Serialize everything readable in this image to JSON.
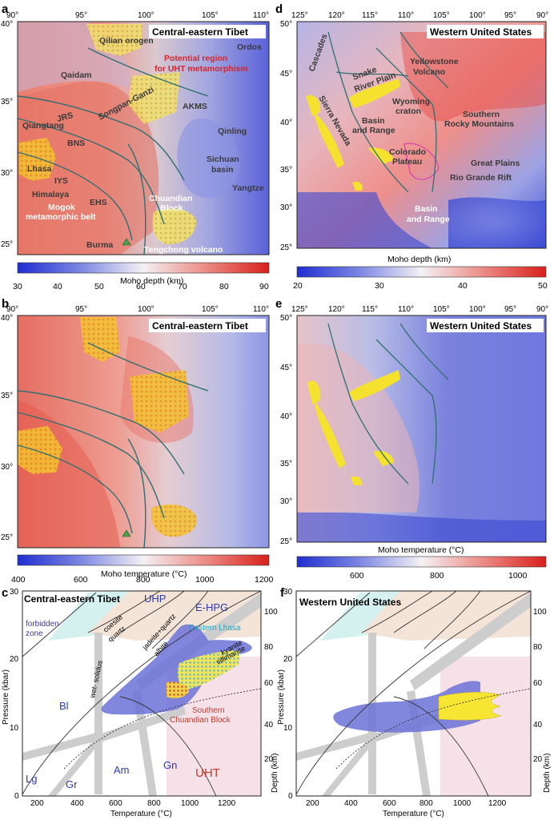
{
  "panels": {
    "a": {
      "letter": "a",
      "title": "Central-eastern Tibet",
      "x_ticks": [
        "90°",
        "95°",
        "100°",
        "105°",
        "110°"
      ],
      "y_ticks": [
        "40°",
        "35°",
        "30°",
        "25°"
      ],
      "labels": {
        "qilian": "Qilian orogen",
        "ordos": "Ordos",
        "potential1": "Potential region",
        "potential2": "for UHT metamorphism",
        "qaidam": "Qaidam",
        "akms": "AKMS",
        "songpan": "Songpan-Ganzi",
        "jrs": "JRS",
        "qiangtang": "Qiangtang",
        "qinling": "Qinling",
        "bns": "BNS",
        "sichuan1": "Sichuan",
        "sichuan2": "basin",
        "lhasa": "Lhasa",
        "iys": "IYS",
        "himalaya": "Himalaya",
        "ehs": "EHS",
        "yangtze": "Yangtze",
        "chuandian1": "Chuandian",
        "chuandian2": "Block",
        "mogok1": "Mogok",
        "mogok2": "metamorphic belt",
        "burma": "Burma",
        "tengchong": "Tengchong volcano"
      },
      "colorbar": {
        "label": "Moho depth (km)",
        "ticks": [
          "30",
          "40",
          "50",
          "60",
          "70",
          "80",
          "90"
        ]
      }
    },
    "b": {
      "letter": "b",
      "title": "Central-eastern Tibet",
      "x_ticks": [
        "90°",
        "95°",
        "100°",
        "105°",
        "110°"
      ],
      "y_ticks": [
        "40°",
        "35°",
        "30°",
        "25°"
      ],
      "colorbar": {
        "label": "Moho temperature (°C)",
        "ticks": [
          "400",
          "600",
          "800",
          "1000",
          "1200"
        ]
      }
    },
    "c": {
      "letter": "c",
      "title": "Central-eastern Tibet",
      "x_label": "Temperature (°C)",
      "y_label": "Pressure (kbar)",
      "depth_label": "Depth (km)",
      "x_ticks": [
        "200",
        "400",
        "600",
        "800",
        "1000",
        "1200"
      ],
      "y_ticks": [
        "0",
        "10",
        "20",
        "30"
      ],
      "depth_ticks": [
        "20",
        "40",
        "60",
        "80",
        "100"
      ],
      "labels": {
        "uhp": "UHP",
        "ehpg": "E-HPG",
        "forbidden1": "forbidden",
        "forbidden2": "zone",
        "coesite": "coesite",
        "quartz": "quartz",
        "jadeite": "jadeite+quartz",
        "albite": "albite",
        "eastern_lhasa": "Eastern Lhasa",
        "kyanite": "kyanite",
        "sillimanite": "sillimanite",
        "wet_solidus": "wet- solidus",
        "bl": "Bl",
        "southern1": "Southern",
        "southern2": "Chuandian Block",
        "lg": "Lg",
        "gr": "Gr",
        "am": "Am",
        "gn": "Gn",
        "uht": "UHT"
      }
    },
    "d": {
      "letter": "d",
      "title": "Western United States",
      "x_ticks": [
        "125°",
        "120°",
        "115°",
        "110°",
        "105°",
        "100°",
        "95°",
        "90°"
      ],
      "y_ticks": [
        "50°",
        "45°",
        "40°",
        "35°",
        "30°",
        "25°"
      ],
      "labels": {
        "cascades": "Cascades",
        "yellowstone1": "Yellowstone",
        "yellowstone2": "Volcano",
        "snake1": "Snake",
        "snake2": "River Plain",
        "wyoming1": "Wyoming",
        "wyoming2": "craton",
        "sierra": "Sierra Nevada",
        "basin_range1": "Basin",
        "basin_range2": "and Range",
        "southern_rocky1": "Southern",
        "southern_rocky2": "Rocky Mountains",
        "colorado1": "Colorado",
        "colorado2": "Plateau",
        "great_plains": "Great Plains",
        "rio_grande": "Rio Grande Rift",
        "basin_range_s1": "Basin",
        "basin_range_s2": "and Range"
      },
      "colorbar": {
        "label": "Moho depth (km)",
        "ticks": [
          "20",
          "30",
          "40",
          "50"
        ]
      }
    },
    "e": {
      "letter": "e",
      "title": "Western United States",
      "x_ticks": [
        "125°",
        "120°",
        "115°",
        "110°",
        "105°",
        "100°",
        "95°",
        "90°"
      ],
      "y_ticks": [
        "50°",
        "45°",
        "40°",
        "35°",
        "30°",
        "25°"
      ],
      "colorbar": {
        "label": "Moho temperature (°C)",
        "ticks": [
          "600",
          "800",
          "1000"
        ]
      }
    },
    "f": {
      "letter": "f",
      "title": "Western United States",
      "x_label": "Temperature (°C)",
      "y_label": "Pressure (kbar)",
      "depth_label": "Depth (km)",
      "x_ticks": [
        "200",
        "400",
        "600",
        "800",
        "1000",
        "1200"
      ],
      "y_ticks": [
        "0",
        "10",
        "20",
        "30"
      ],
      "depth_ticks": [
        "20",
        "40",
        "60",
        "80",
        "100"
      ]
    }
  }
}
